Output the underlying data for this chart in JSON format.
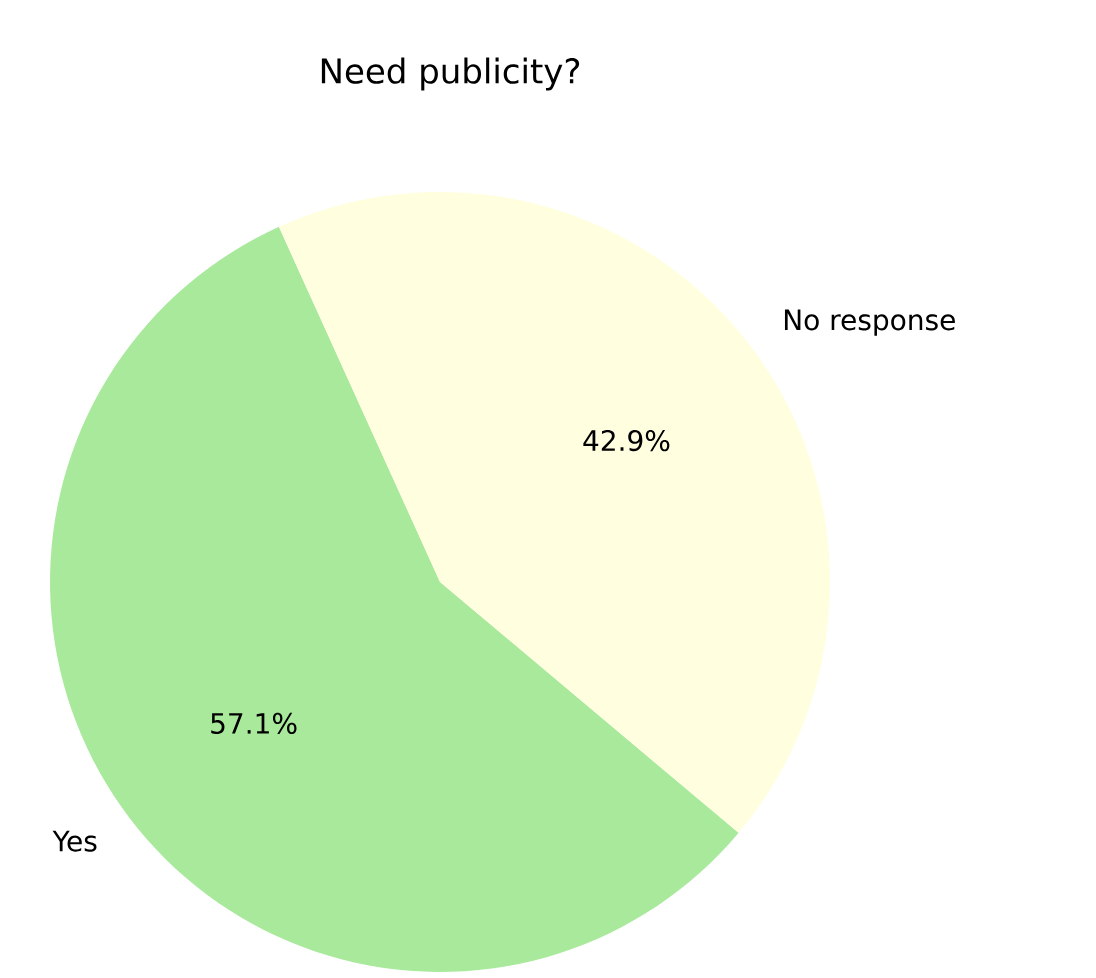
{
  "chart_data": {
    "type": "pie",
    "title": "Need publicity?",
    "categories": [
      "Yes",
      "No response"
    ],
    "values": [
      57.1,
      42.9
    ],
    "value_labels": [
      "57.1%",
      "42.9%"
    ],
    "colors": [
      "#a8e99b",
      "#ffffe0"
    ]
  }
}
